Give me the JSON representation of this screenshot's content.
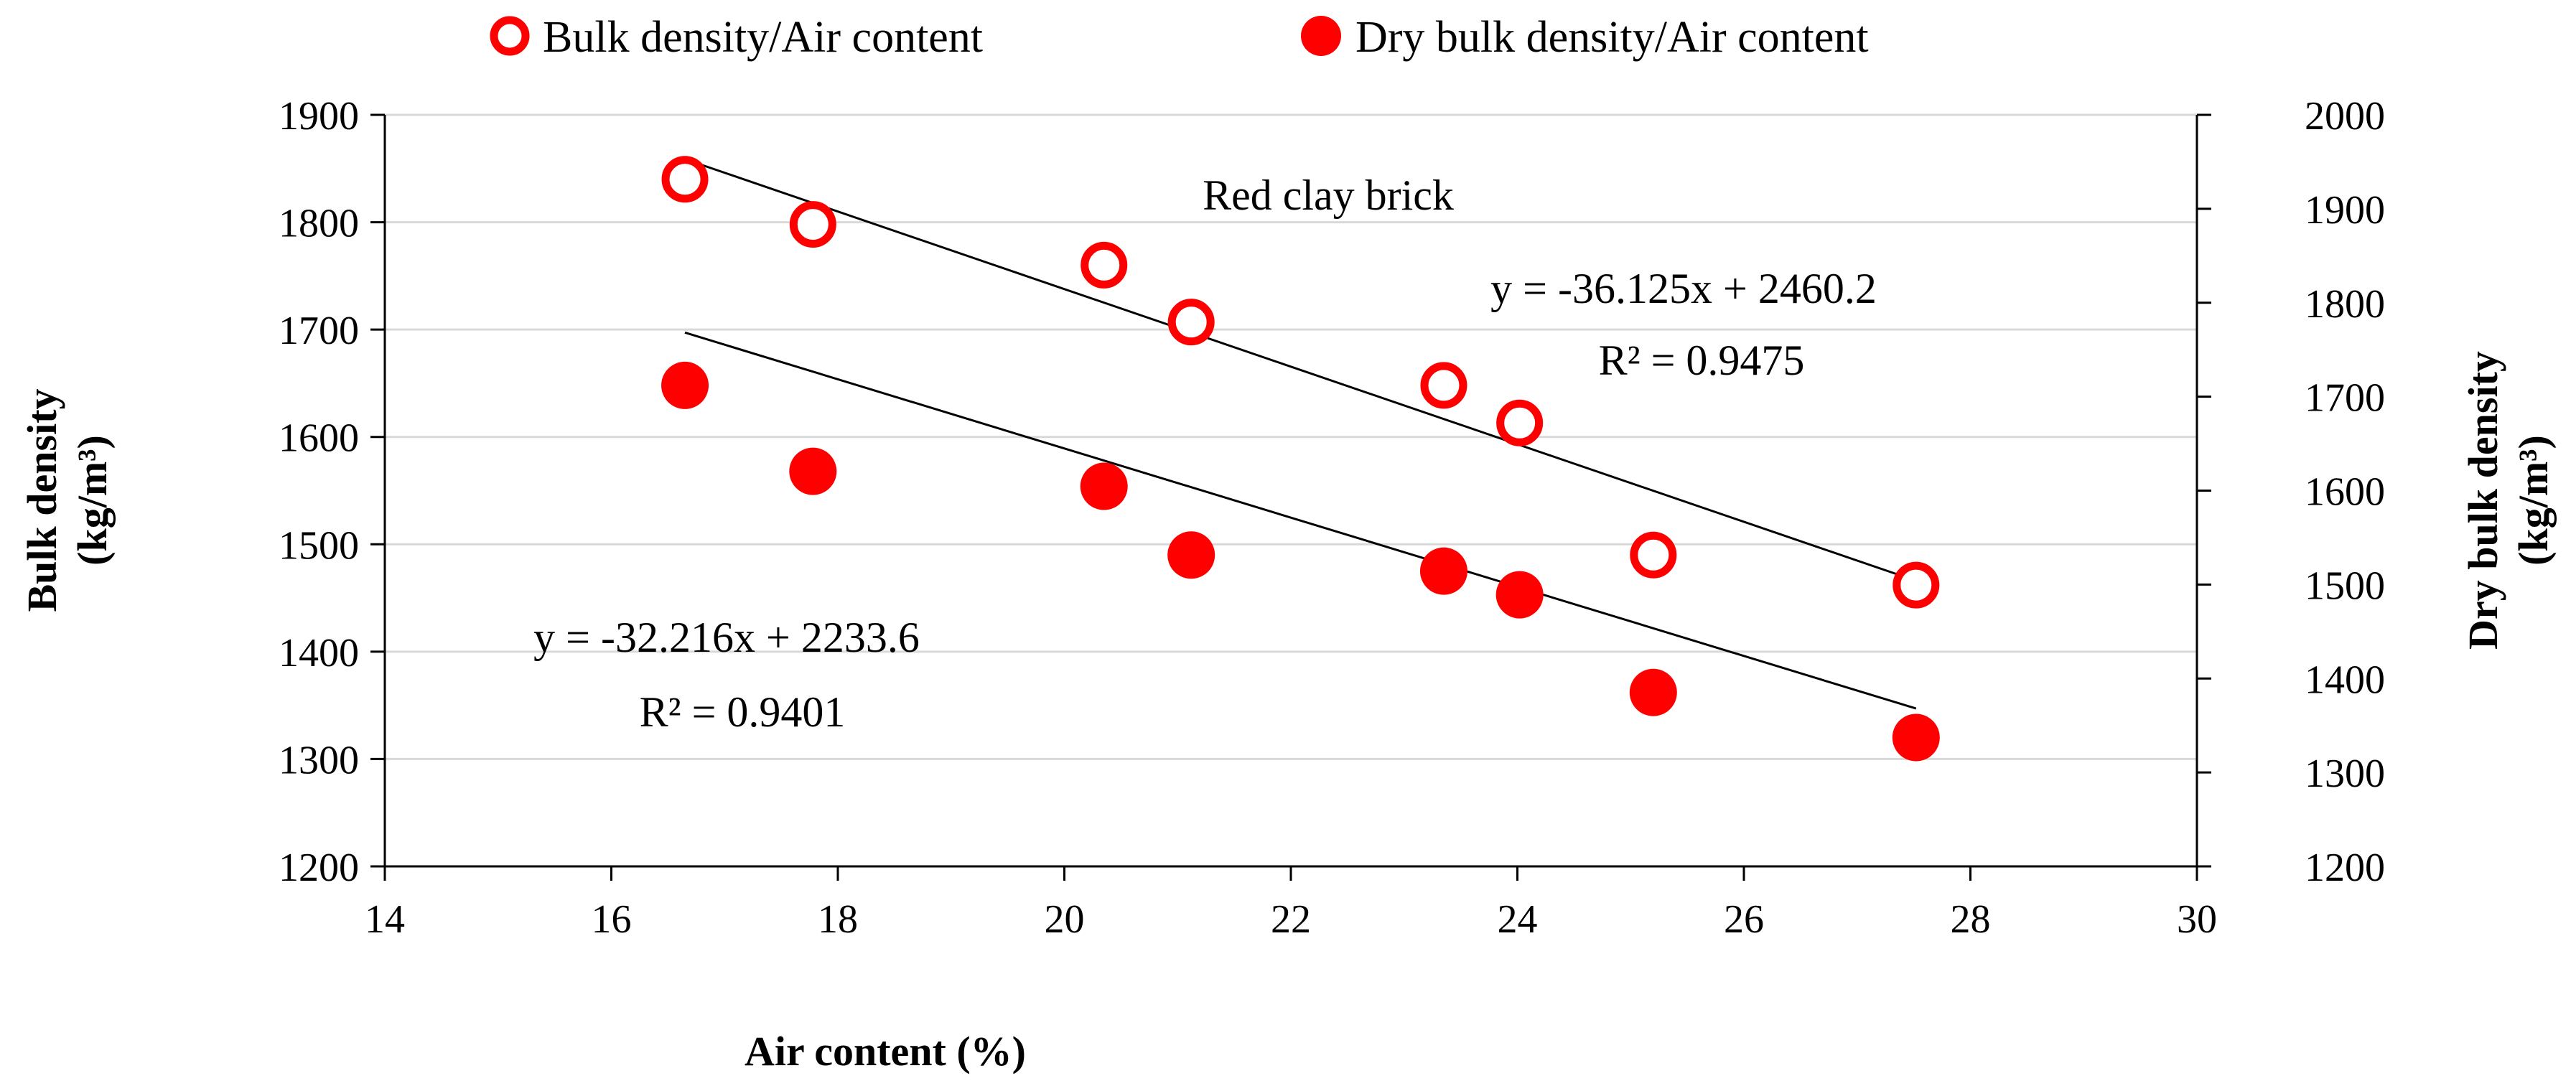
{
  "chart_data": {
    "type": "scatter",
    "title": "",
    "annotation": "Red clay brick",
    "xlabel": "Air content (%)",
    "ylabel": "Bulk density",
    "ylabel_unit": "(kg/m³)",
    "y2label": "Dry bulk density",
    "y2label_unit": "(kg/m³)",
    "xlim": [
      14,
      30
    ],
    "ylim": [
      1200,
      1900
    ],
    "y2lim": [
      1200,
      2000
    ],
    "x_ticks": [
      "14",
      "16",
      "18",
      "20",
      "22",
      "24",
      "26",
      "28",
      "30"
    ],
    "y_ticks": [
      "1200",
      "1300",
      "1400",
      "1500",
      "1600",
      "1700",
      "1800",
      "1900"
    ],
    "y2_ticks": [
      "1200",
      "1300",
      "1400",
      "1500",
      "1600",
      "1700",
      "1800",
      "1900",
      "2000"
    ],
    "grid": "horizontal",
    "legend": "top-center",
    "series": [
      {
        "name": "Bulk density/Air content",
        "marker": "open-circle",
        "color": "#ff0000",
        "axis": "left",
        "x": [
          16.65,
          17.78,
          20.35,
          21.12,
          23.35,
          24.02,
          25.2,
          27.52
        ],
        "y": [
          1840,
          1798,
          1760,
          1707,
          1648,
          1613,
          1490,
          1462
        ],
        "trendline": {
          "slope": -36.125,
          "intercept": 2460.2,
          "x_range": [
            16.65,
            27.52
          ]
        },
        "equation": "y = -36.125x + 2460.2",
        "r2": "R² = 0.9475"
      },
      {
        "name": "Dry bulk density/Air content",
        "marker": "filled-circle",
        "color": "#ff0000",
        "axis": "left",
        "x": [
          16.65,
          17.78,
          20.35,
          21.12,
          23.35,
          24.02,
          25.2,
          27.52
        ],
        "y": [
          1648,
          1568,
          1554,
          1490,
          1475,
          1453,
          1362,
          1320
        ],
        "trendline": {
          "slope": -32.216,
          "intercept": 2233.6,
          "x_range": [
            16.65,
            27.52
          ]
        },
        "equation": "y = -32.216x + 2233.6",
        "r2": "R² = 0.9401"
      }
    ]
  }
}
